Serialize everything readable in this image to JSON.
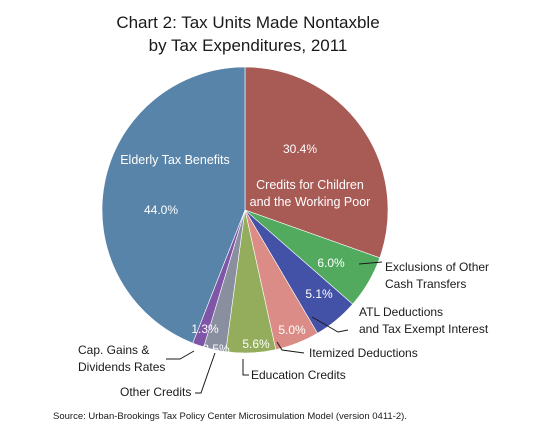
{
  "chart_data": {
    "type": "pie",
    "title": [
      "Chart 2: Tax Units Made Nontaxble",
      "by Tax Expenditures, 2011"
    ],
    "slices": [
      {
        "name": [
          "Credits for Children",
          "and the Working Poor"
        ],
        "value": 30.4,
        "label": "30.4%",
        "color": "#A85A55"
      },
      {
        "name": [
          "Exclusions of Other",
          "Cash Transfers"
        ],
        "value": 6.0,
        "label": "6.0%",
        "color": "#52AA5E"
      },
      {
        "name": [
          "ATL Deductions",
          "and Tax Exempt Interest"
        ],
        "value": 5.1,
        "label": "5.1%",
        "color": "#4352A6"
      },
      {
        "name": [
          "Itemized Deductions"
        ],
        "value": 5.0,
        "label": "5.0%",
        "color": "#DC8C86"
      },
      {
        "name": [
          "Education Credits"
        ],
        "value": 5.6,
        "label": "5.6%",
        "color": "#94AD5D"
      },
      {
        "name": [
          "Other Credits"
        ],
        "value": 2.5,
        "label": "2.5%",
        "color": "#8A8FA0"
      },
      {
        "name": [
          "Cap. Gains &",
          "Dividends Rates"
        ],
        "value": 1.3,
        "label": "1.3%",
        "color": "#7F55A8"
      },
      {
        "name": [
          "Elderly Tax Benefits"
        ],
        "value": 44.0,
        "label": "44.0%",
        "color": "#5884AA"
      }
    ],
    "source": "Source: Urban-Brookings Tax Policy Center Microsimulation Model (version 0411-2)."
  }
}
